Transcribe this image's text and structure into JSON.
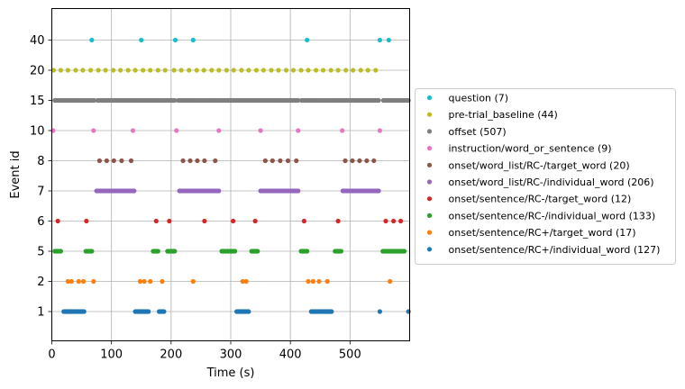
{
  "chart_data": {
    "type": "scatter",
    "title": "",
    "xlabel": "Time (s)",
    "ylabel": "Event id",
    "xlim": [
      0,
      600
    ],
    "x_ticks": [
      0,
      100,
      200,
      300,
      400,
      500
    ],
    "y_categories": [
      "1",
      "2",
      "5",
      "6",
      "7",
      "8",
      "10",
      "15",
      "20",
      "40"
    ],
    "grid": true,
    "legend_placement": "right, outside plot",
    "series": [
      {
        "name": "question (7)",
        "event_id": "40",
        "color": "#17becf",
        "x": [
          67,
          150,
          207,
          237,
          428,
          550,
          565
        ]
      },
      {
        "name": "pre-trial_baseline (44)",
        "event_id": "20",
        "color": "#bcbd22",
        "x": [
          3,
          15,
          27,
          40,
          52,
          65,
          78,
          90,
          103,
          115,
          128,
          140,
          153,
          165,
          178,
          190,
          205,
          217,
          230,
          243,
          255,
          268,
          280,
          293,
          305,
          318,
          330,
          343,
          355,
          368,
          380,
          393,
          405,
          418,
          430,
          443,
          455,
          468,
          480,
          493,
          505,
          518,
          530,
          543
        ]
      },
      {
        "name": "offset (507)",
        "event_id": "15",
        "color": "#7f7f7f",
        "x": [
          5,
          8,
          11,
          14,
          17,
          20,
          23,
          26,
          29,
          32,
          35,
          38,
          41,
          44,
          47,
          50,
          53,
          56,
          59,
          62,
          65,
          68,
          71,
          77,
          80,
          83,
          86,
          89,
          92,
          95,
          98,
          101,
          104,
          107,
          110,
          113,
          116,
          119,
          122,
          125,
          128,
          131,
          134,
          137,
          140,
          143,
          146,
          149,
          152,
          155,
          158,
          161,
          164,
          167,
          170,
          173,
          176,
          179,
          182,
          185,
          188,
          191,
          194,
          197,
          200,
          203,
          206,
          212,
          215,
          218,
          221,
          224,
          227,
          230,
          233,
          236,
          239,
          242,
          245,
          248,
          251,
          254,
          257,
          260,
          263,
          266,
          269,
          272,
          275,
          278,
          281,
          284,
          287,
          290,
          293,
          296,
          299,
          302,
          305,
          308,
          311,
          314,
          317,
          320,
          323,
          326,
          329,
          332,
          335,
          338,
          341,
          344,
          347,
          350,
          353,
          356,
          359,
          362,
          365,
          368,
          371,
          374,
          377,
          380,
          383,
          386,
          389,
          392,
          395,
          398,
          401,
          404,
          407,
          410,
          413,
          419,
          422,
          425,
          428,
          431,
          434,
          437,
          440,
          443,
          446,
          449,
          452,
          455,
          458,
          461,
          464,
          467,
          470,
          473,
          476,
          479,
          482,
          485,
          488,
          491,
          494,
          497,
          500,
          503,
          506,
          509,
          512,
          515,
          518,
          521,
          524,
          527,
          530,
          533,
          536,
          539,
          542,
          545,
          548,
          556,
          559,
          562,
          565,
          568,
          571,
          574,
          577,
          580,
          583,
          586,
          589,
          592,
          595,
          598
        ]
      },
      {
        "name": "instruction/word_or_sentence (9)",
        "event_id": "10",
        "color": "#e377c2",
        "x": [
          2,
          70,
          136,
          209,
          280,
          350,
          413,
          487,
          550
        ]
      },
      {
        "name": "onset/word_list/RC-/target_word (20)",
        "event_id": "8",
        "color": "#8c564b",
        "x": [
          80,
          92,
          104,
          117,
          133,
          220,
          232,
          244,
          256,
          274,
          358,
          370,
          383,
          396,
          410,
          492,
          504,
          516,
          528,
          540
        ]
      },
      {
        "name": "onset/word_list/RC-/individual_word (206)",
        "event_id": "7",
        "color": "#9467bd",
        "x": [
          75,
          78,
          81,
          84,
          87,
          90,
          93,
          96,
          99,
          102,
          105,
          108,
          111,
          114,
          117,
          120,
          123,
          126,
          129,
          132,
          135,
          138,
          214,
          217,
          220,
          223,
          226,
          229,
          232,
          235,
          238,
          241,
          244,
          247,
          250,
          253,
          256,
          259,
          262,
          265,
          268,
          271,
          274,
          277,
          280,
          350,
          353,
          356,
          359,
          362,
          365,
          368,
          371,
          374,
          377,
          380,
          383,
          386,
          389,
          392,
          395,
          398,
          401,
          404,
          407,
          410,
          413,
          488,
          491,
          494,
          497,
          500,
          503,
          506,
          509,
          512,
          515,
          518,
          521,
          524,
          527,
          530,
          533,
          536,
          539,
          542,
          545,
          548
        ]
      },
      {
        "name": "onset/sentence/RC-/target_word (12)",
        "event_id": "6",
        "color": "#d62728",
        "x": [
          10,
          58,
          175,
          197,
          256,
          304,
          341,
          423,
          480,
          560,
          573,
          585
        ]
      },
      {
        "name": "onset/sentence/RC-/individual_word (133)",
        "event_id": "5",
        "color": "#2ca02c",
        "x": [
          5,
          7,
          9,
          11,
          13,
          15,
          57,
          59,
          61,
          63,
          65,
          67,
          170,
          172,
          174,
          176,
          178,
          194,
          196,
          198,
          200,
          202,
          204,
          206,
          285,
          287,
          289,
          291,
          293,
          295,
          297,
          299,
          301,
          303,
          305,
          307,
          335,
          337,
          339,
          341,
          343,
          345,
          418,
          420,
          422,
          424,
          426,
          428,
          475,
          477,
          479,
          481,
          483,
          485,
          555,
          557,
          559,
          561,
          563,
          565,
          567,
          569,
          571,
          573,
          575,
          577,
          579,
          581,
          583,
          585,
          587,
          589,
          591
        ]
      },
      {
        "name": "onset/sentence/RC+/target_word (17)",
        "event_id": "2",
        "color": "#ff7f0e",
        "x": [
          27,
          33,
          45,
          53,
          70,
          148,
          155,
          165,
          185,
          237,
          320,
          326,
          430,
          438,
          448,
          462,
          567
        ]
      },
      {
        "name": "onset/sentence/RC+/individual_word (127)",
        "event_id": "1",
        "color": "#1f77b4",
        "x": [
          20,
          22,
          24,
          26,
          28,
          30,
          32,
          34,
          36,
          38,
          40,
          42,
          44,
          46,
          48,
          50,
          52,
          54,
          140,
          142,
          144,
          146,
          148,
          150,
          152,
          154,
          156,
          158,
          160,
          162,
          180,
          182,
          184,
          186,
          188,
          310,
          312,
          314,
          316,
          318,
          320,
          322,
          324,
          326,
          328,
          330,
          435,
          437,
          439,
          441,
          443,
          445,
          447,
          449,
          451,
          453,
          455,
          457,
          459,
          461,
          463,
          465,
          467,
          469,
          550,
          598
        ]
      }
    ]
  }
}
